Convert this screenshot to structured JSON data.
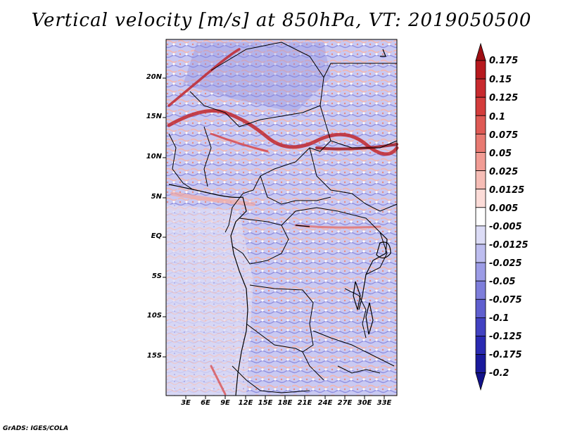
{
  "title": "Vertical velocity [m/s] at 850hPa, VT: 2019050500",
  "footer": "GrADS: IGES/COLA",
  "y_axis_labels": [
    "20N",
    "15N",
    "10N",
    "5N",
    "EQ",
    "5S",
    "10S",
    "15S"
  ],
  "x_axis_labels": [
    "3E",
    "6E",
    "9E",
    "12E",
    "15E",
    "18E",
    "21E",
    "24E",
    "27E",
    "30E",
    "33E"
  ],
  "colorbar": {
    "labels": [
      "0.175",
      "0.15",
      "0.125",
      "0.1",
      "0.075",
      "0.05",
      "0.025",
      "0.0125",
      "0.005",
      "-0.005",
      "-0.0125",
      "-0.025",
      "-0.05",
      "-0.075",
      "-0.1",
      "-0.125",
      "-0.175",
      "-0.2"
    ],
    "colors": [
      "#9e0f14",
      "#b7191e",
      "#c82a2e",
      "#d43d3c",
      "#df5a55",
      "#e87a72",
      "#f19c94",
      "#f6bdb6",
      "#fcdcd8",
      "#ffffff",
      "#dcdcf6",
      "#bdbdef",
      "#9c9ce6",
      "#7e7edb",
      "#5f5fcf",
      "#4242c2",
      "#2a2ab2",
      "#1a1a9c",
      "#12128a"
    ]
  }
}
